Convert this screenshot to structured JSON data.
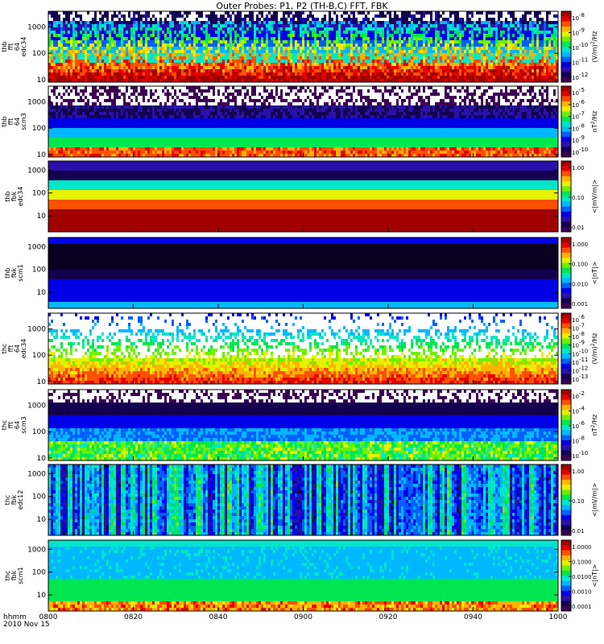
{
  "title": "Outer Probes: P1, P2 (TH-B,C) FFT, FBK",
  "colors": {
    "palette": [
      "#ffffff",
      "#3c0054",
      "#140050",
      "#2a10a8",
      "#0000e6",
      "#0060ff",
      "#00b8ff",
      "#00e6c8",
      "#00e650",
      "#6ef000",
      "#e6f000",
      "#ffb400",
      "#ff5000",
      "#e60000",
      "#a00000"
    ]
  },
  "chart_data": [
    {
      "type": "heatmap",
      "probe": "thb",
      "instrument": "fft",
      "subinstrument": "64",
      "quantity": "edc34",
      "ylabel_lines": [
        "thb",
        "fft",
        "64",
        "edc34"
      ],
      "yscale": "log",
      "ylim": [
        8,
        4000
      ],
      "yticks": [
        "10",
        "100",
        "1000"
      ],
      "colorbar": {
        "ticks": [
          "10^-8",
          "10^-9",
          "10^-10",
          "10^-11",
          "10^-12"
        ],
        "unit": "(V/m)^2/Hz"
      },
      "pattern": "bursty-high"
    },
    {
      "type": "heatmap",
      "probe": "thb",
      "instrument": "fft",
      "subinstrument": "64",
      "quantity": "scm3",
      "ylabel_lines": [
        "thb",
        "fft",
        "64",
        "scm3"
      ],
      "yscale": "log",
      "ylim": [
        8,
        4000
      ],
      "yticks": [
        "10",
        "100",
        "1000"
      ],
      "colorbar": {
        "ticks": [
          "10^-5",
          "10^-6",
          "10^-7",
          "10^-8",
          "10^-9",
          "10^-10"
        ],
        "unit": "nT^2/Hz"
      },
      "pattern": "banded-noisy-top"
    },
    {
      "type": "heatmap",
      "probe": "thb",
      "instrument": "fbk",
      "quantity": "edc34",
      "ylabel_lines": [
        "thb",
        "fbk",
        "edc34"
      ],
      "yscale": "log",
      "ylim": [
        2,
        2500
      ],
      "yticks": [
        "10",
        "100",
        "1000"
      ],
      "colorbar": {
        "ticks": [
          "1.00",
          "0.10",
          "0.01"
        ],
        "unit": "<|mV/m|>"
      },
      "pattern": "bands-fbk-e"
    },
    {
      "type": "heatmap",
      "probe": "thb",
      "instrument": "fbk",
      "quantity": "scm1",
      "ylabel_lines": [
        "thb",
        "fbk",
        "scm1"
      ],
      "yscale": "log",
      "ylim": [
        2,
        2500
      ],
      "yticks": [
        "10",
        "100",
        "1000"
      ],
      "colorbar": {
        "ticks": [
          "1.000",
          "0.100",
          "0.010",
          "0.001"
        ],
        "unit": "<|nT|>"
      },
      "pattern": "bands-fbk-b"
    },
    {
      "type": "heatmap",
      "probe": "thc",
      "instrument": "fft",
      "subinstrument": "64",
      "quantity": "edc34",
      "ylabel_lines": [
        "thc",
        "fft",
        "64",
        "edc34"
      ],
      "yscale": "log",
      "ylim": [
        8,
        4000
      ],
      "yticks": [
        "10",
        "100",
        "1000"
      ],
      "colorbar": {
        "ticks": [
          "10^-6",
          "10^-7",
          "10^-8",
          "10^-9",
          "10^-10",
          "10^-11",
          "10^-12",
          "10^-13"
        ],
        "unit": "(V/m)^2/Hz"
      },
      "pattern": "bursty-sparse"
    },
    {
      "type": "heatmap",
      "probe": "thc",
      "instrument": "fft",
      "subinstrument": "64",
      "quantity": "scm3",
      "ylabel_lines": [
        "thc",
        "fft",
        "64",
        "scm3"
      ],
      "yscale": "log",
      "ylim": [
        8,
        4000
      ],
      "yticks": [
        "10",
        "100",
        "1000"
      ],
      "colorbar": {
        "ticks": [
          "10^-2",
          "10^-4",
          "10^-6",
          "10^-8",
          "10^-10"
        ],
        "unit": "nT^2/Hz"
      },
      "pattern": "banded-dark-top"
    },
    {
      "type": "heatmap",
      "probe": "thc",
      "instrument": "fbk",
      "quantity": "edc12",
      "ylabel_lines": [
        "thc",
        "fbk",
        "edc12"
      ],
      "yscale": "log",
      "ylim": [
        2,
        2500
      ],
      "yticks": [
        "10",
        "100",
        "1000"
      ],
      "colorbar": {
        "ticks": [
          "1.00",
          "0.10",
          "0.01"
        ],
        "unit": "<|mV/m|>"
      },
      "pattern": "fbk-variable"
    },
    {
      "type": "heatmap",
      "probe": "thc",
      "instrument": "fbk",
      "quantity": "scm1",
      "ylabel_lines": [
        "thc",
        "fbk",
        "scm1"
      ],
      "yscale": "log",
      "ylim": [
        2,
        2500
      ],
      "yticks": [
        "10",
        "100",
        "1000"
      ],
      "colorbar": {
        "ticks": [
          "1.0000",
          "0.1000",
          "0.0100",
          "0.0010",
          "0.0001"
        ],
        "unit": "<|nT|>"
      },
      "pattern": "fbk-green"
    }
  ],
  "xaxis": {
    "ticks": [
      "0800",
      "0820",
      "0840",
      "0900",
      "0920",
      "0940",
      "1000"
    ],
    "label_lines": [
      "hhmm",
      "2010 Nov 15"
    ],
    "range": [
      "08:00",
      "10:00"
    ]
  }
}
